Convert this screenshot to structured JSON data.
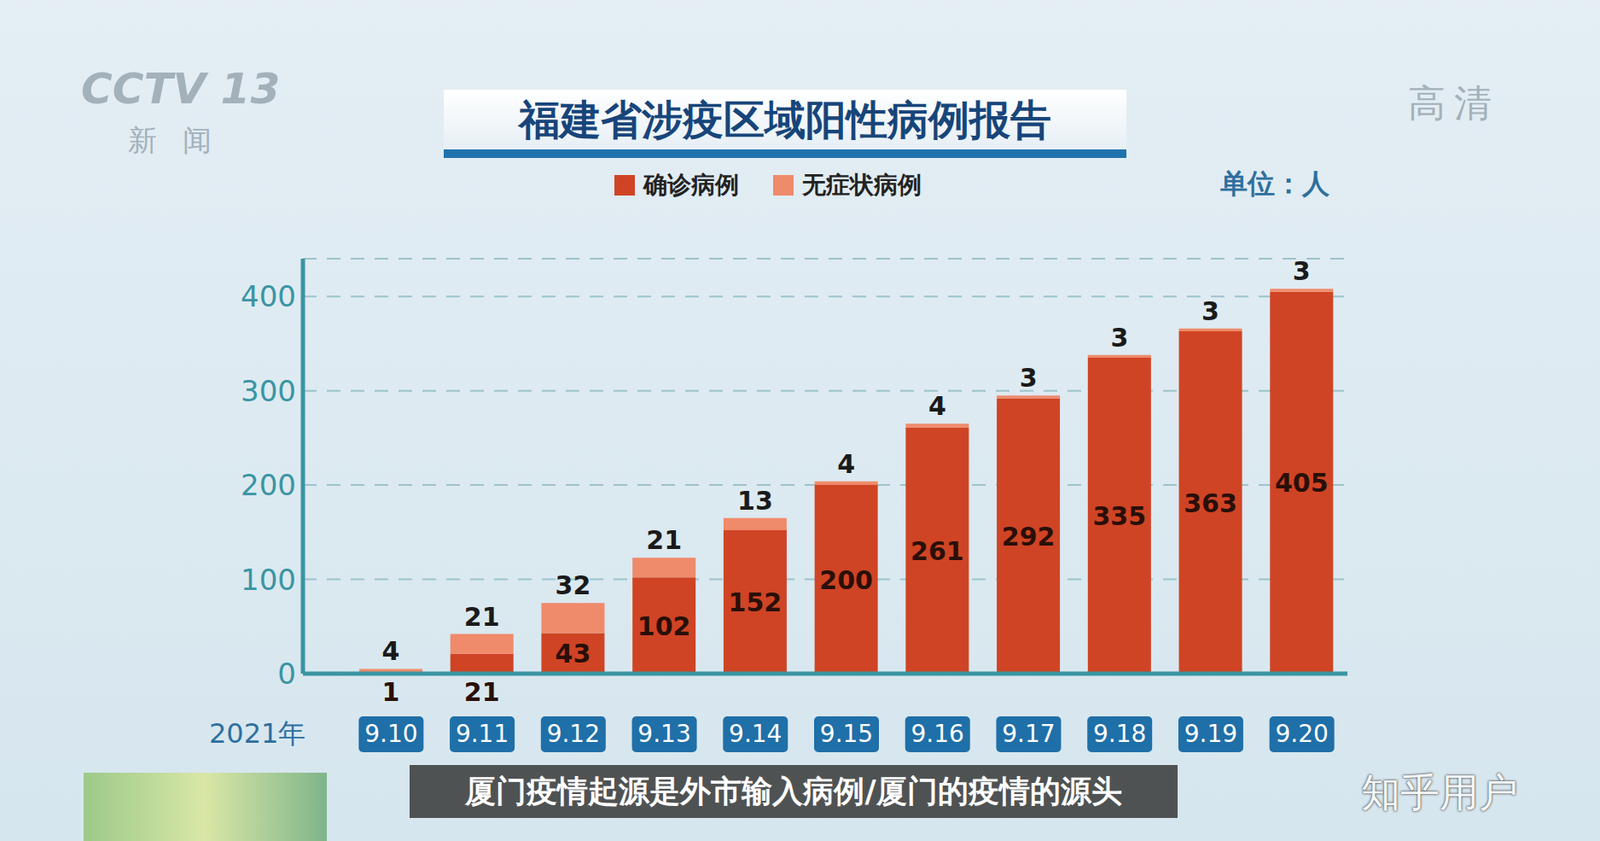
{
  "chart_data": {
    "type": "bar",
    "title": "福建省涉疫区域阳性病例报告",
    "y_label": "单位：人",
    "x_label": "2021年",
    "categories": [
      "9.10",
      "9.11",
      "9.12",
      "9.13",
      "9.14",
      "9.15",
      "9.16",
      "9.17",
      "9.18",
      "9.19",
      "9.20"
    ],
    "series": [
      {
        "name": "确诊病例",
        "color": "#cf4424",
        "values": [
          1,
          21,
          43,
          102,
          152,
          200,
          261,
          292,
          335,
          363,
          405
        ]
      },
      {
        "name": "无症状病例",
        "color": "#ef8a6a",
        "values": [
          4,
          21,
          32,
          21,
          13,
          4,
          4,
          3,
          3,
          3,
          3
        ]
      }
    ],
    "stacked": true,
    "data_labels": true,
    "ylim": [
      0,
      440
    ],
    "yticks": [
      0,
      100,
      200,
      300,
      400
    ],
    "grid": true,
    "legend": "top",
    "annotations": [
      "厦门疫情起源是外市输入病例/厦门的疫情的源头",
      "CCTV 13",
      "新闻",
      "高清",
      "知乎用户"
    ]
  }
}
